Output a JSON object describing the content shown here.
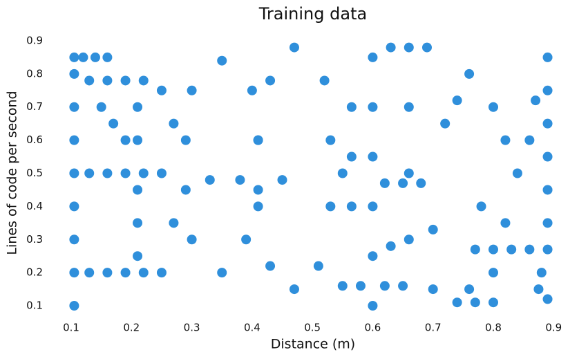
{
  "chart_data": {
    "type": "scatter",
    "title": "Training data",
    "x_label": "Distance (m)",
    "y_label": "Lines of code per second",
    "color": "#2f8fdb",
    "x": [
      0.105,
      0.105,
      0.105,
      0.105,
      0.105,
      0.105,
      0.105,
      0.105,
      0.105,
      0.12,
      0.14,
      0.16,
      0.13,
      0.16,
      0.19,
      0.22,
      0.13,
      0.16,
      0.19,
      0.22,
      0.25,
      0.13,
      0.16,
      0.19,
      0.22,
      0.21,
      0.21,
      0.21,
      0.21,
      0.21,
      0.35,
      0.4,
      0.41,
      0.41,
      0.39,
      0.35,
      0.3,
      0.29,
      0.29,
      0.3,
      0.47,
      0.52,
      0.53,
      0.53,
      0.51,
      0.47,
      0.43,
      0.41,
      0.41,
      0.43,
      0.15,
      0.17,
      0.19,
      0.25,
      0.27,
      0.565,
      0.565,
      0.565,
      0.6,
      0.6,
      0.6,
      0.6,
      0.6,
      0.6,
      0.63,
      0.66,
      0.69,
      0.55,
      0.58,
      0.62,
      0.65,
      0.62,
      0.65,
      0.68,
      0.66,
      0.66,
      0.66,
      0.72,
      0.74,
      0.76,
      0.74,
      0.77,
      0.8,
      0.89,
      0.89,
      0.89,
      0.89,
      0.89,
      0.89,
      0.875,
      0.88,
      0.89,
      0.77,
      0.8,
      0.83,
      0.86,
      0.89,
      0.8,
      0.82,
      0.84,
      0.86,
      0.87,
      0.78,
      0.82,
      0.8,
      0.76,
      0.25,
      0.27,
      0.33,
      0.38,
      0.45,
      0.55,
      0.63,
      0.7,
      0.7
    ],
    "y": [
      0.1,
      0.2,
      0.3,
      0.4,
      0.5,
      0.6,
      0.7,
      0.8,
      0.85,
      0.85,
      0.85,
      0.85,
      0.78,
      0.78,
      0.78,
      0.78,
      0.5,
      0.5,
      0.5,
      0.5,
      0.5,
      0.2,
      0.2,
      0.2,
      0.2,
      0.25,
      0.35,
      0.45,
      0.6,
      0.7,
      0.84,
      0.75,
      0.6,
      0.45,
      0.3,
      0.2,
      0.3,
      0.45,
      0.6,
      0.75,
      0.88,
      0.78,
      0.6,
      0.4,
      0.22,
      0.15,
      0.22,
      0.4,
      0.6,
      0.78,
      0.7,
      0.65,
      0.6,
      0.75,
      0.65,
      0.4,
      0.55,
      0.7,
      0.1,
      0.25,
      0.4,
      0.55,
      0.7,
      0.85,
      0.88,
      0.88,
      0.88,
      0.16,
      0.16,
      0.16,
      0.16,
      0.47,
      0.47,
      0.47,
      0.3,
      0.5,
      0.7,
      0.65,
      0.72,
      0.8,
      0.11,
      0.11,
      0.11,
      0.35,
      0.45,
      0.55,
      0.65,
      0.75,
      0.85,
      0.15,
      0.2,
      0.12,
      0.27,
      0.27,
      0.27,
      0.27,
      0.27,
      0.7,
      0.6,
      0.5,
      0.6,
      0.72,
      0.4,
      0.35,
      0.2,
      0.15,
      0.2,
      0.35,
      0.48,
      0.48,
      0.48,
      0.5,
      0.28,
      0.33,
      0.15
    ],
    "xlim": [
      0.09,
      0.91
    ],
    "ylim": [
      0.09,
      0.91
    ],
    "xticks": [
      0.1,
      0.2,
      0.3,
      0.4,
      0.5,
      0.6,
      0.7,
      0.8,
      0.9
    ],
    "yticks": [
      0.1,
      0.2,
      0.3,
      0.4,
      0.5,
      0.6,
      0.7,
      0.8,
      0.9
    ]
  }
}
